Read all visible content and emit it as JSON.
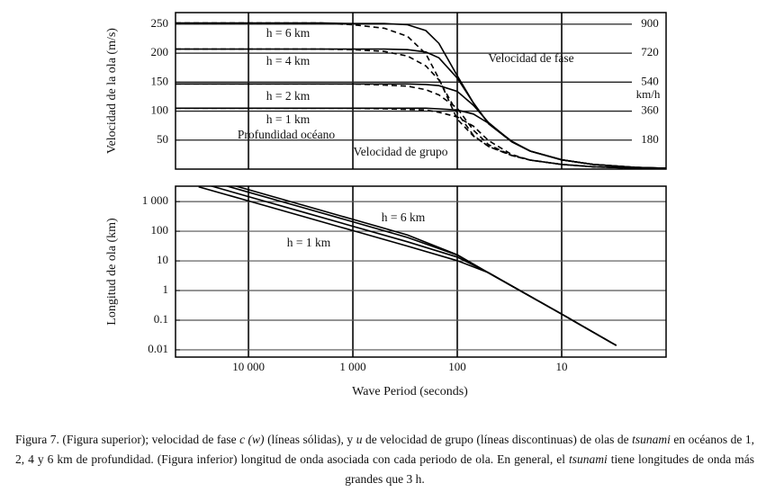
{
  "chart_data": [
    {
      "type": "line",
      "xscale": "log",
      "xlim": [
        50000,
        1
      ],
      "ylim": [
        0,
        270
      ],
      "yticks": [
        50,
        100,
        150,
        200,
        250
      ],
      "ylabel": "Velocidad de la ola (m/s)",
      "y2lim": [
        0,
        972
      ],
      "y2ticks": [
        180,
        360,
        540,
        720,
        900
      ],
      "y2label": "km/h",
      "grid": true,
      "x": [
        50000,
        2000,
        1000,
        500,
        300,
        200,
        150,
        100,
        70,
        50,
        30,
        20,
        10,
        5,
        2,
        1
      ],
      "series": [
        {
          "color": "#000000",
          "linestyle": "solid",
          "values": [
            252,
            252,
            251,
            251,
            249,
            239,
            217,
            161,
            114,
            78,
            47,
            31,
            16,
            8,
            3,
            1.6
          ]
        },
        {
          "color": "#000000",
          "linestyle": "solid",
          "values": [
            207,
            207,
            207,
            207,
            206,
            202,
            192,
            157,
            114,
            78,
            47,
            31,
            16,
            8,
            3,
            1.6
          ]
        },
        {
          "color": "#000000",
          "linestyle": "solid",
          "values": [
            147,
            147,
            147,
            147,
            147,
            146,
            144,
            134,
            110,
            80,
            47,
            31,
            16,
            8,
            3,
            1.6
          ]
        },
        {
          "color": "#000000",
          "linestyle": "solid",
          "values": [
            105,
            105,
            105,
            105,
            105,
            105,
            104,
            102,
            95,
            79,
            48,
            31,
            16,
            8,
            3,
            1.6
          ]
        },
        {
          "color": "#000000",
          "linestyle": "dashed",
          "values": [
            252,
            252,
            249,
            243,
            229,
            199,
            156,
            86,
            57,
            39,
            23.5,
            15.5,
            8,
            4,
            1.6,
            0.8
          ]
        },
        {
          "color": "#000000",
          "linestyle": "dashed",
          "values": [
            207,
            207,
            206,
            203,
            195,
            178,
            154,
            97,
            58,
            39,
            23.5,
            15.5,
            8,
            4,
            1.6,
            0.8
          ]
        },
        {
          "color": "#000000",
          "linestyle": "dashed",
          "values": [
            147,
            147,
            147,
            145,
            143,
            137,
            128,
            105,
            67,
            42,
            23.5,
            15.5,
            8,
            4,
            1.6,
            0.8
          ]
        },
        {
          "color": "#000000",
          "linestyle": "dashed",
          "values": [
            105,
            105,
            105,
            104,
            103,
            102,
            98,
            90,
            74,
            49,
            25,
            15.5,
            8,
            4,
            1.6,
            0.8
          ]
        }
      ],
      "annotations": [
        "h = 6 km",
        "h = 4 km",
        "h = 2 km",
        "h = 1 km",
        "Profundidad océano",
        "Velocidad de grupo",
        "Velocidad de fase"
      ]
    },
    {
      "type": "line",
      "xscale": "log",
      "yscale": "log",
      "xlim": [
        50000,
        1
      ],
      "ylim": [
        0.0057,
        3300
      ],
      "xticks": [
        {
          "value": 10000,
          "label": "10 000"
        },
        {
          "value": 1000,
          "label": "1 000"
        },
        100,
        10
      ],
      "yticks": [
        {
          "value": 1000,
          "label": "1 000"
        },
        100,
        10,
        1,
        0.1,
        0.01
      ],
      "xlabel": "Wave Period (seconds)",
      "ylabel": "Longitud de ola (km)",
      "grid": true,
      "x": [
        30000,
        10000,
        3000,
        1000,
        300,
        100,
        50,
        30,
        10,
        3
      ],
      "series": [
        {
          "color": "#000000",
          "linestyle": "solid",
          "values": [
            3150,
            1050,
            315,
            105,
            31.5,
            10.2,
            3.95,
            1.44,
            0.16,
            0.014
          ]
        },
        {
          "color": "#000000",
          "linestyle": "solid",
          "values": [
            4410,
            1470,
            441,
            147,
            44.1,
            13.4,
            4.0,
            1.41,
            0.16,
            0.014
          ]
        },
        {
          "color": "#000000",
          "linestyle": "solid",
          "values": [
            6210,
            2070,
            621,
            207,
            61.8,
            15.7,
            3.9,
            1.41,
            0.16,
            0.014
          ]
        },
        {
          "color": "#000000",
          "linestyle": "solid",
          "values": [
            7560,
            2520,
            756,
            251,
            74.7,
            16.1,
            3.9,
            1.41,
            0.16,
            0.014
          ]
        }
      ],
      "annotations": [
        "h = 6 km",
        "h = 1 km"
      ]
    }
  ],
  "caption": [
    {
      "text": "Figura 7. (Figura superior); velocidad de fase "
    },
    {
      "text": "c (w)",
      "italic": true
    },
    {
      "text": " (líneas sólidas), y "
    },
    {
      "text": "u",
      "italic": true
    },
    {
      "text": " de velocidad de grupo (líneas discontinuas) de olas de "
    },
    {
      "text": "tsunami",
      "italic": true
    },
    {
      "text": " en océanos de 1, 2, 4 y 6 km de profundidad. (Figura inferior) longitud de onda asociada con cada periodo de ola. En general, el "
    },
    {
      "text": "tsunami",
      "italic": true
    },
    {
      "text": " tiene longitudes de onda más grandes que 3 h."
    }
  ]
}
